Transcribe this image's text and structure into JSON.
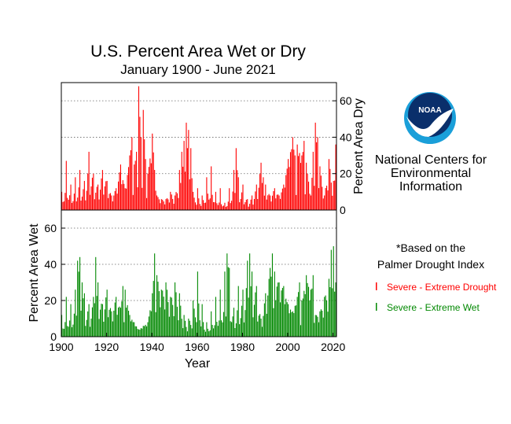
{
  "chart_data": {
    "type": "bar",
    "title": "U.S. Percent Area Wet or Dry",
    "subtitle": "January 1900 - June 2021",
    "xlabel": "Year",
    "x_ticks": [
      1900,
      1920,
      1940,
      1960,
      1980,
      2000,
      2020
    ],
    "xlim": [
      1900,
      2021.5
    ],
    "panels": [
      {
        "name": "dry",
        "ylabel": "Percent Area Dry",
        "ylim": [
          0,
          70
        ],
        "y_ticks": [
          0,
          20,
          40,
          60
        ],
        "y_axis_side": "right",
        "grid": true,
        "color": "#ff0000"
      },
      {
        "name": "wet",
        "ylabel": "Percent Area Wet",
        "ylim": [
          0,
          70
        ],
        "y_ticks": [
          0,
          20,
          40,
          60
        ],
        "y_axis_side": "left",
        "grid": true,
        "color": "#008800"
      }
    ],
    "series": [
      {
        "name": "Severe - Extreme Drought",
        "panel": "dry",
        "color": "#ff0000",
        "x": [
          1900,
          1902,
          1904,
          1906,
          1908,
          1910,
          1912,
          1914,
          1916,
          1918,
          1920,
          1922,
          1924,
          1926,
          1928,
          1930,
          1931,
          1932,
          1933,
          1934,
          1935,
          1936,
          1937,
          1938,
          1940,
          1942,
          1944,
          1946,
          1948,
          1950,
          1952,
          1953,
          1954,
          1955,
          1956,
          1957,
          1958,
          1960,
          1962,
          1964,
          1966,
          1968,
          1970,
          1972,
          1974,
          1976,
          1977,
          1978,
          1980,
          1982,
          1984,
          1986,
          1988,
          1989,
          1990,
          1992,
          1994,
          1996,
          1998,
          2000,
          2002,
          2003,
          2004,
          2006,
          2007,
          2008,
          2010,
          2011,
          2012,
          2013,
          2014,
          2016,
          2018,
          2020,
          2021
        ],
        "values": [
          10,
          27,
          14,
          18,
          22,
          16,
          32,
          20,
          14,
          22,
          16,
          8,
          12,
          25,
          12,
          30,
          40,
          25,
          32,
          68,
          40,
          55,
          28,
          20,
          42,
          8,
          6,
          6,
          10,
          8,
          22,
          32,
          38,
          48,
          44,
          34,
          10,
          12,
          8,
          18,
          24,
          10,
          12,
          4,
          12,
          22,
          34,
          18,
          14,
          6,
          8,
          14,
          26,
          18,
          14,
          8,
          12,
          8,
          14,
          28,
          40,
          30,
          36,
          30,
          38,
          26,
          8,
          32,
          48,
          40,
          24,
          8,
          28,
          16,
          36
        ]
      },
      {
        "name": "Severe - Extreme Wet",
        "panel": "wet",
        "color": "#008800",
        "x": [
          1900,
          1902,
          1904,
          1906,
          1907,
          1908,
          1909,
          1910,
          1912,
          1914,
          1915,
          1916,
          1918,
          1920,
          1922,
          1924,
          1926,
          1927,
          1928,
          1930,
          1932,
          1934,
          1936,
          1938,
          1940,
          1941,
          1942,
          1944,
          1946,
          1948,
          1950,
          1952,
          1954,
          1956,
          1958,
          1960,
          1962,
          1964,
          1966,
          1968,
          1970,
          1972,
          1973,
          1974,
          1976,
          1978,
          1980,
          1982,
          1983,
          1984,
          1986,
          1988,
          1990,
          1992,
          1993,
          1994,
          1996,
          1998,
          2000,
          2002,
          2004,
          2005,
          2006,
          2008,
          2010,
          2011,
          2012,
          2014,
          2016,
          2018,
          2019,
          2020,
          2021
        ],
        "values": [
          12,
          22,
          18,
          26,
          42,
          44,
          30,
          24,
          18,
          22,
          44,
          30,
          18,
          26,
          14,
          22,
          16,
          28,
          26,
          12,
          8,
          4,
          6,
          8,
          24,
          46,
          34,
          26,
          30,
          22,
          30,
          24,
          12,
          10,
          20,
          36,
          18,
          8,
          14,
          22,
          26,
          36,
          46,
          38,
          16,
          28,
          26,
          42,
          46,
          36,
          28,
          10,
          24,
          38,
          46,
          36,
          30,
          28,
          18,
          14,
          22,
          30,
          20,
          34,
          26,
          34,
          12,
          14,
          22,
          32,
          48,
          50,
          30
        ]
      }
    ],
    "legend": {
      "placement": "right",
      "note": "*Based on the\nPalmer Drought Index",
      "entries": [
        {
          "label": "Severe - Extreme Drought",
          "color": "#ff0000"
        },
        {
          "label": "Severe - Extreme Wet",
          "color": "#008800"
        }
      ]
    }
  },
  "logo": {
    "name": "NOAA",
    "org_name": "National Centers for\nEnvironmental\nInformation"
  }
}
